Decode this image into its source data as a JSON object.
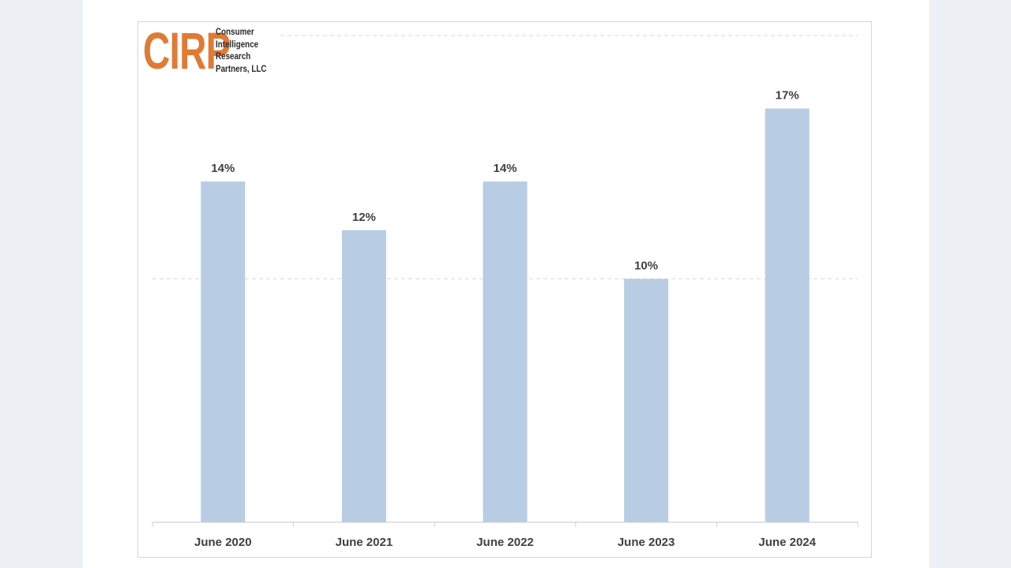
{
  "logo": {
    "mark": "CIRP",
    "name_lines": [
      "Consumer",
      "Intelligence",
      "Research",
      "Partners, LLC"
    ]
  },
  "colors": {
    "bar": "#b8cce4",
    "logo_accent": "#e07a35"
  },
  "chart_data": {
    "type": "bar",
    "categories": [
      "June 2020",
      "June 2021",
      "June 2022",
      "June 2023",
      "June 2024"
    ],
    "values": [
      14,
      12,
      14,
      10,
      17
    ],
    "value_labels": [
      "14%",
      "12%",
      "14%",
      "10%",
      "17%"
    ],
    "ylim": [
      0,
      20
    ],
    "gridlines": [
      10,
      20
    ],
    "grid": true,
    "legend": "none"
  }
}
